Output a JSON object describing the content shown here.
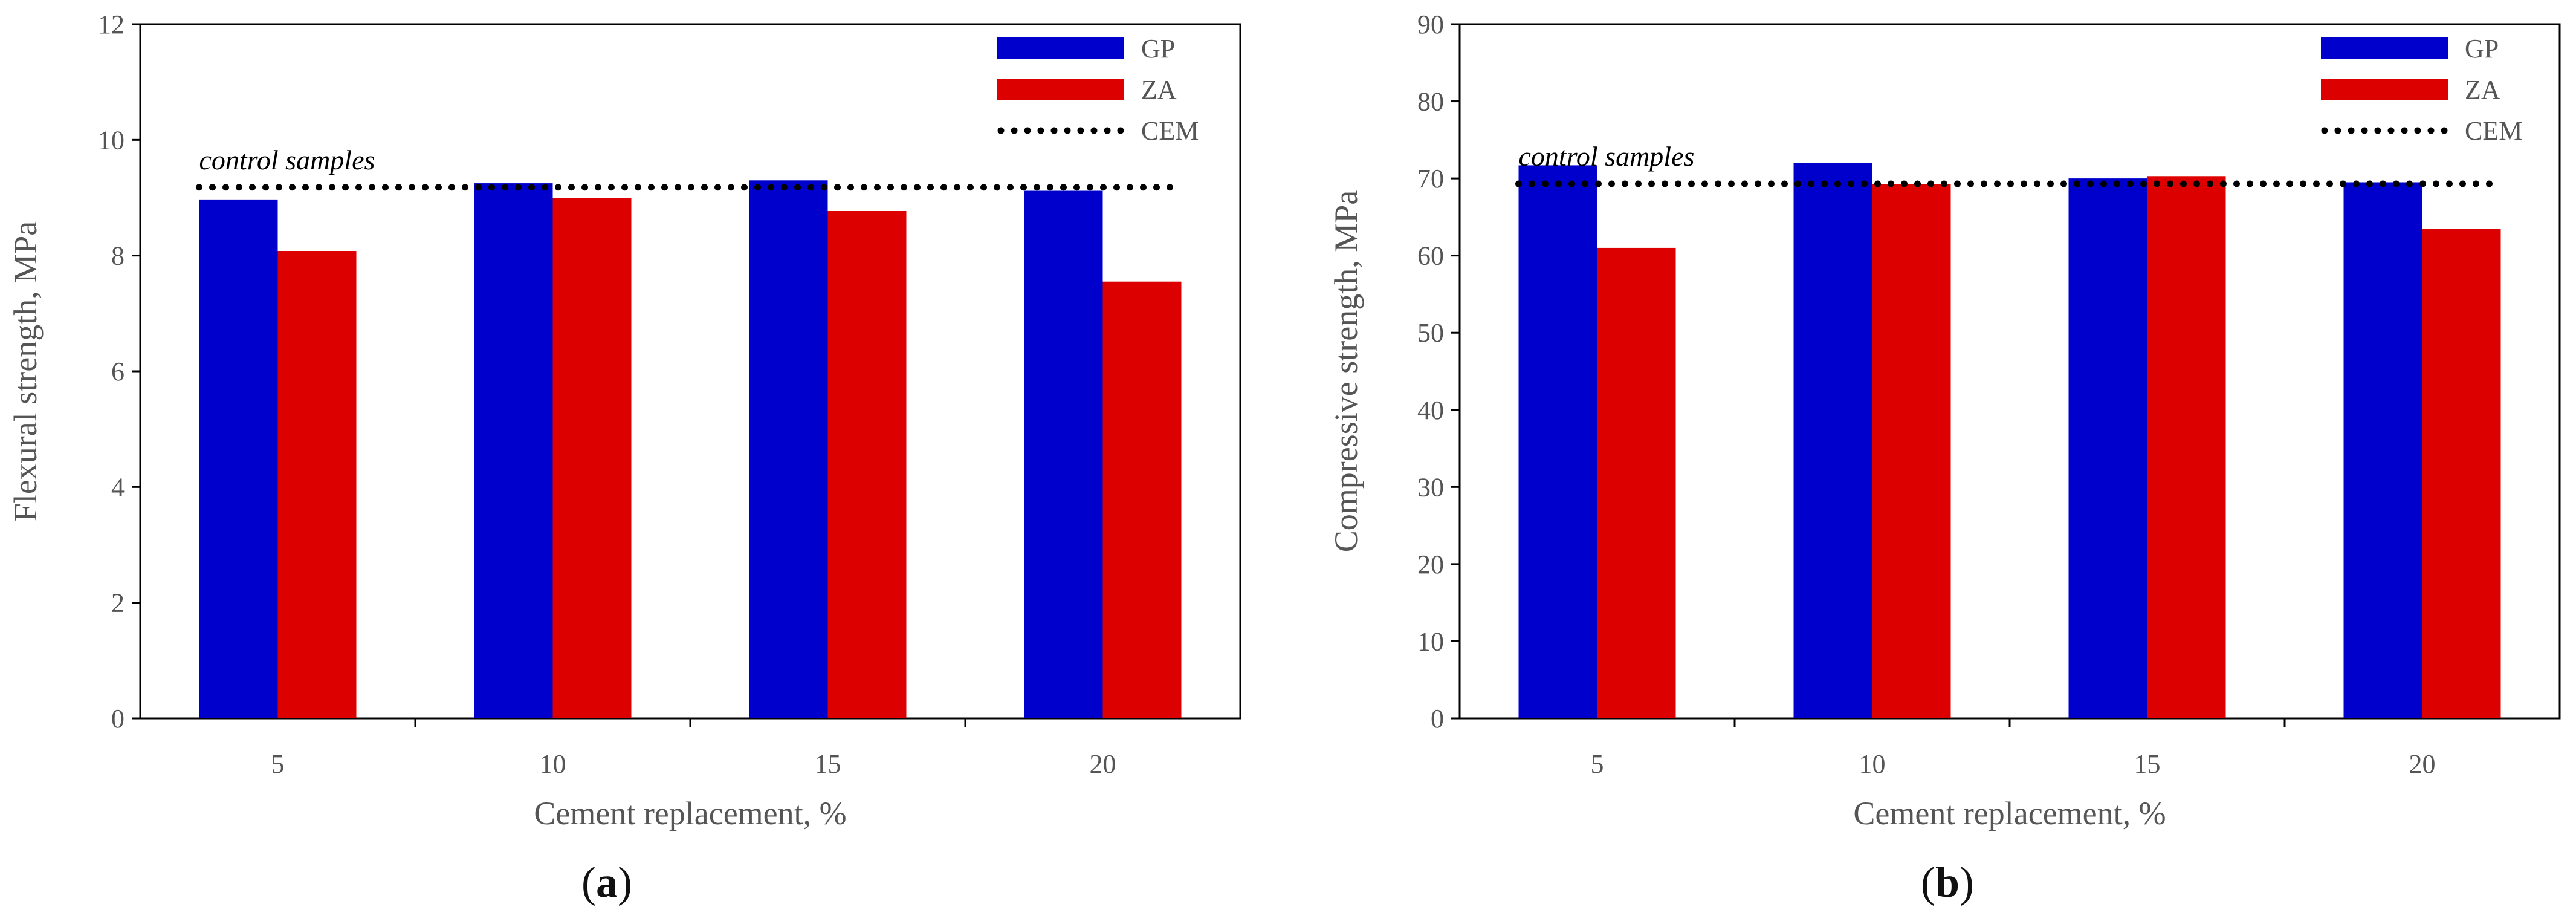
{
  "chart_data": [
    {
      "type": "bar",
      "panel_label": "a",
      "categories": [
        "5",
        "10",
        "15",
        "20"
      ],
      "series": [
        {
          "name": "GP",
          "color": "#0000cc",
          "values": [
            8.97,
            9.25,
            9.3,
            9.12
          ]
        },
        {
          "name": "ZA",
          "color": "#dd0000",
          "values": [
            8.08,
            9.0,
            8.77,
            7.55
          ]
        }
      ],
      "reference_line": {
        "name": "CEM",
        "value": 9.18,
        "style": "dotted",
        "color": "#000000",
        "annotation": "control samples"
      },
      "xlabel": "Cement replacement, %",
      "ylabel": "Flexural strength, MPa",
      "ylim": [
        0,
        12
      ],
      "yticks": [
        "0",
        "2",
        "4",
        "6",
        "8",
        "10",
        "12"
      ],
      "legend_position": "top-right",
      "grid": false
    },
    {
      "type": "bar",
      "panel_label": "b",
      "categories": [
        "5",
        "10",
        "15",
        "20"
      ],
      "series": [
        {
          "name": "GP",
          "color": "#0000cc",
          "values": [
            71.7,
            72.0,
            70.0,
            69.5
          ]
        },
        {
          "name": "ZA",
          "color": "#dd0000",
          "values": [
            61.0,
            69.3,
            70.3,
            63.5
          ]
        }
      ],
      "reference_line": {
        "name": "CEM",
        "value": 69.3,
        "style": "dotted",
        "color": "#000000",
        "annotation": "control samples"
      },
      "xlabel": "Cement replacement, %",
      "ylabel": "Compressive strength, MPa",
      "ylim": [
        0,
        90
      ],
      "yticks": [
        "0",
        "10",
        "20",
        "30",
        "40",
        "50",
        "60",
        "70",
        "80",
        "90"
      ],
      "legend_position": "top-right",
      "grid": false
    }
  ]
}
